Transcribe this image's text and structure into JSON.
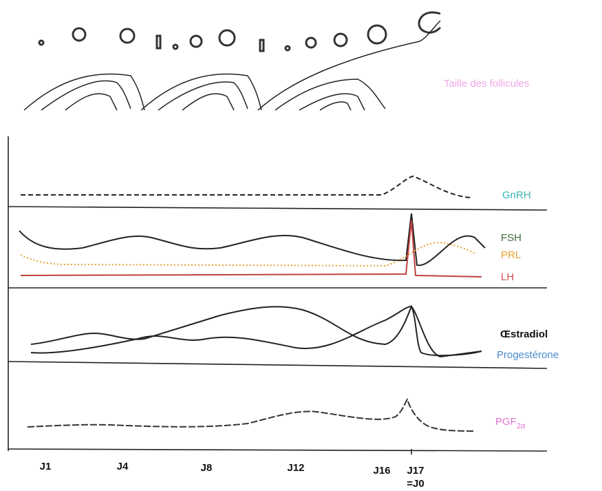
{
  "follicle_label": "Taille des follicules",
  "hormones": {
    "gnrh": "GnRH",
    "fsh": "FSH",
    "prl": "PRL",
    "lh": "LH",
    "estradiol": "Œstradiol",
    "progesterone": "Progestérone",
    "pgf": {
      "base": "PGF",
      "sub": "2α"
    }
  },
  "days": [
    "J1",
    "J4",
    "J8",
    "J12",
    "J16",
    "J17",
    "=J0"
  ]
}
